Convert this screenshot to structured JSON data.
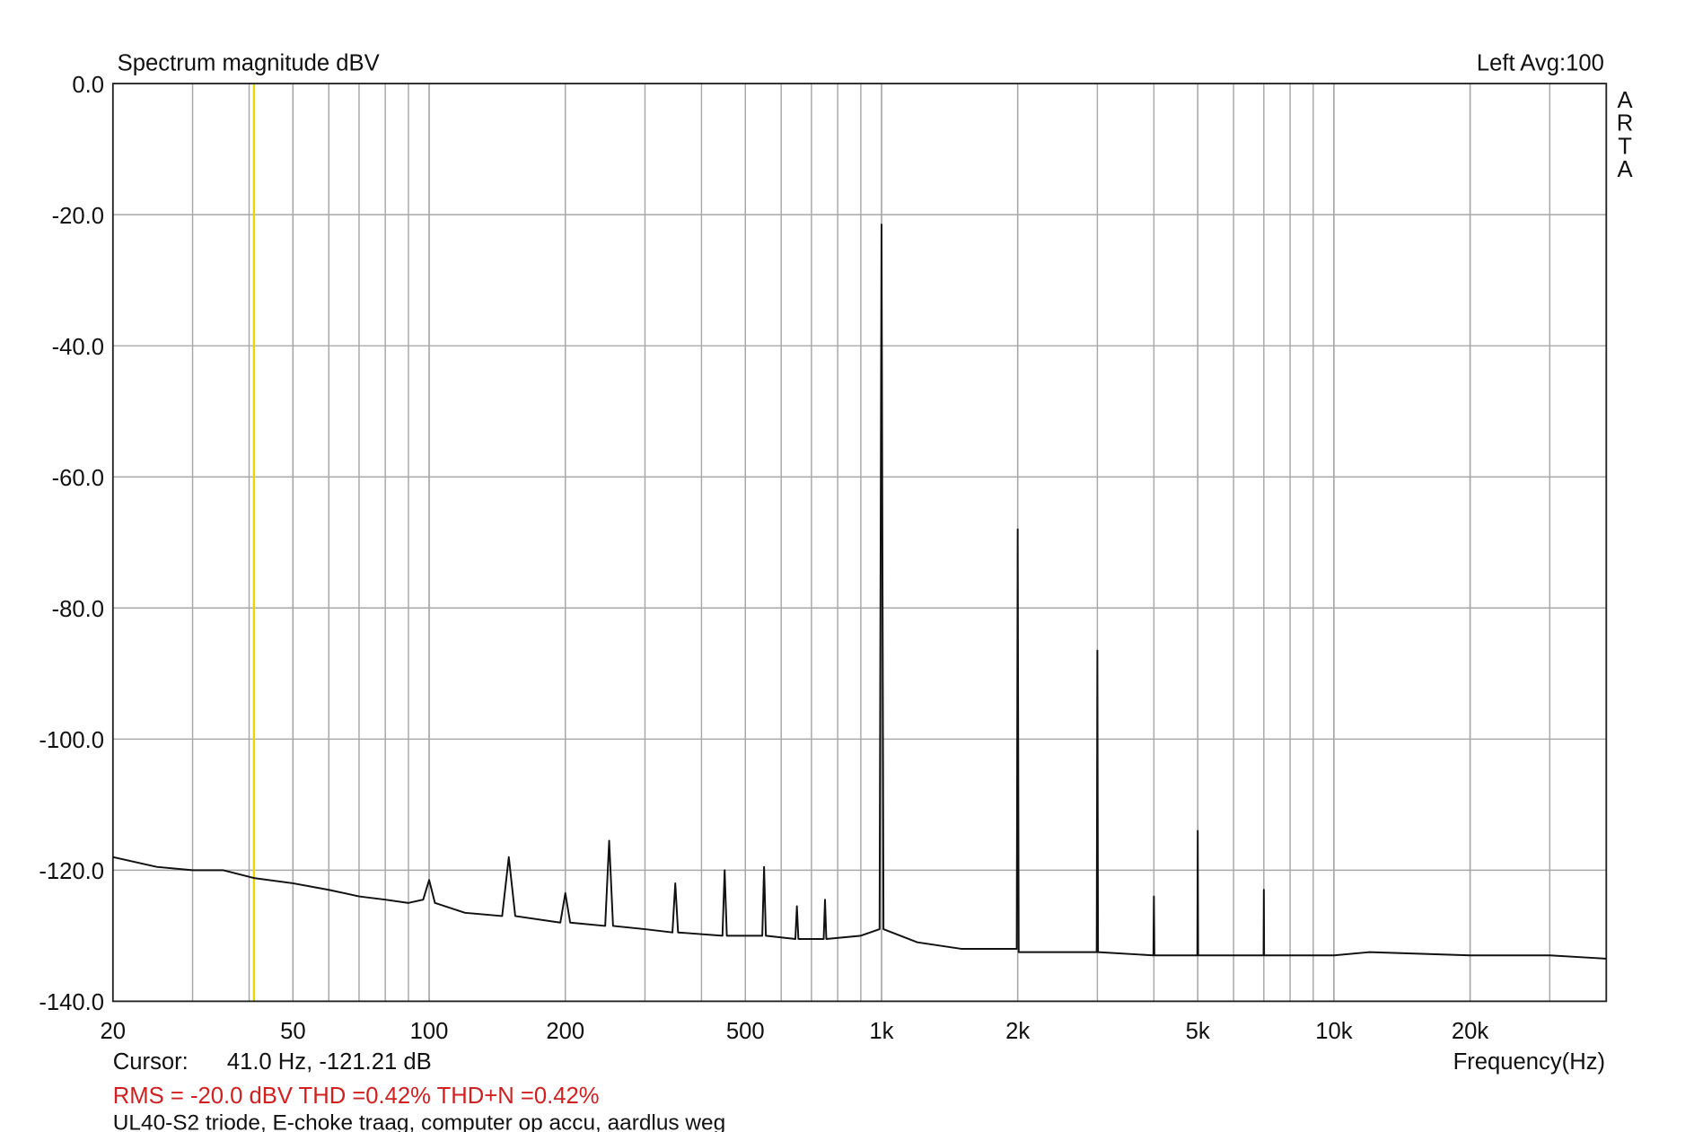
{
  "chart_data": {
    "type": "line",
    "title": "Spectrum magnitude dBV",
    "header_right": "Left  Avg:100",
    "watermark": "ARTA",
    "x_label": "Frequency(Hz)",
    "cursor_label": "Cursor:",
    "cursor_text": "41.0 Hz, -121.21 dB",
    "cursor_x": 41,
    "cursor_color": "#e8d800",
    "stats": "RMS =  -20.0 dBV   THD =0.42%   THD+N =0.42%",
    "stats_color": "#d02020",
    "note": "UL40-S2 triode, E-choke traag, computer op accu, aardlus weg",
    "xscale": "log",
    "grid": true,
    "xlim": [
      20,
      40000
    ],
    "ylim": [
      -140,
      0
    ],
    "xticks": [
      20,
      50,
      100,
      200,
      500,
      {
        "value": 1000,
        "label": "1k"
      },
      {
        "value": 2000,
        "label": "2k"
      },
      {
        "value": 5000,
        "label": "5k"
      },
      {
        "value": 10000,
        "label": "10k"
      },
      {
        "value": 20000,
        "label": "20k"
      }
    ],
    "yticks": [
      {
        "value": 0,
        "label": "0.0"
      },
      {
        "value": -20,
        "label": "-20.0"
      },
      {
        "value": -40,
        "label": "-40.0"
      },
      {
        "value": -60,
        "label": "-60.0"
      },
      {
        "value": -80,
        "label": "-80.0"
      },
      {
        "value": -100,
        "label": "-100.0"
      },
      {
        "value": -120,
        "label": "-120.0"
      },
      {
        "value": -140,
        "label": "-140.0"
      }
    ],
    "x": [
      20,
      25,
      30,
      35,
      41,
      50,
      60,
      70,
      80,
      90,
      97,
      100,
      103,
      120,
      145,
      150,
      155,
      195,
      200,
      205,
      245,
      250,
      255,
      300,
      345,
      350,
      355,
      445,
      450,
      455,
      545,
      550,
      555,
      645,
      650,
      655,
      745,
      750,
      755,
      900,
      990,
      1000,
      1010,
      1200,
      1500,
      1990,
      2000,
      2010,
      2990,
      3000,
      3010,
      3990,
      4000,
      4010,
      4990,
      5000,
      5010,
      6990,
      7000,
      7010,
      10000,
      12000,
      20000,
      30000,
      40000
    ],
    "series": [
      {
        "name": "Left",
        "color": "#111111",
        "values": [
          -118,
          -119.5,
          -120,
          -120,
          -121.2,
          -122,
          -123,
          -124,
          -124.5,
          -125,
          -124.5,
          -121.5,
          -125,
          -126.5,
          -127,
          -118,
          -127,
          -128,
          -123.5,
          -128,
          -128.5,
          -115.5,
          -128.5,
          -129,
          -129.5,
          -122,
          -129.5,
          -130,
          -120,
          -130,
          -130,
          -119.5,
          -130,
          -130.5,
          -125.5,
          -130.5,
          -130.5,
          -124.5,
          -130.5,
          -130,
          -129,
          -21.5,
          -129,
          -131,
          -132,
          -132,
          -68,
          -132.5,
          -132.5,
          -86.5,
          -132.5,
          -133,
          -124,
          -133,
          -133,
          -114,
          -133,
          -133,
          -123,
          -133,
          -133,
          -132.5,
          -133,
          -133,
          -133.5
        ]
      }
    ]
  }
}
